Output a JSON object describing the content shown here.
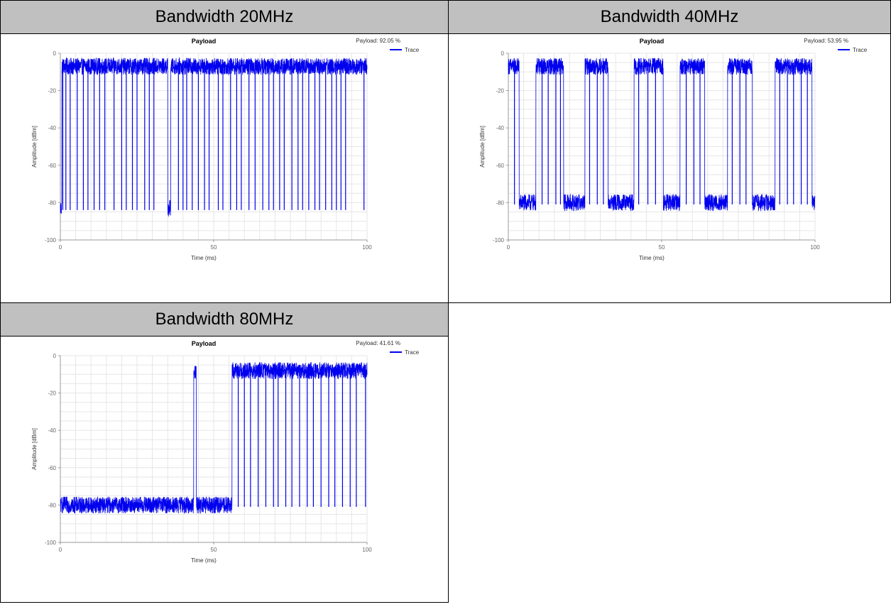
{
  "panels": [
    {
      "title": "Bandwidth 20MHz"
    },
    {
      "title": "Bandwidth 40MHz"
    },
    {
      "title": "Bandwidth 80MHz"
    }
  ],
  "colors": {
    "trace": "#0000ee",
    "header_bg": "#c0c0c0",
    "grid": "#e6e6e6"
  },
  "chart_data": [
    {
      "type": "line",
      "title": "Payload",
      "annotation": "Payload: 92.05 %",
      "xlabel": "Time (ms)",
      "ylabel": "Amplitude [dBm]",
      "xlim": [
        0,
        100
      ],
      "ylim": [
        -100,
        0
      ],
      "xticks": [
        "0",
        "50",
        "100"
      ],
      "yticks": [
        "0",
        "-20",
        "-40",
        "-60",
        "-80",
        "-100"
      ],
      "legend_position": "top-right",
      "grid": true,
      "series": [
        {
          "name": "Trace",
          "on_level": -7,
          "off_level": -83,
          "on_segments": [
            [
              0.5,
              31
            ],
            [
              31,
              35
            ],
            [
              36,
              100
            ]
          ],
          "dropouts": [
            0.8,
            1.8,
            3.2,
            5.5,
            7.5,
            9,
            11,
            12.8,
            14.5,
            17.5,
            20,
            21.5,
            23.5,
            25,
            27.5,
            29,
            30.5,
            38.5,
            40,
            41.2,
            43,
            45,
            47,
            48.5,
            51.5,
            53,
            55.5,
            57.5,
            59,
            61.5,
            63.5,
            66,
            68,
            69.5,
            71.5,
            73,
            75.5,
            77.5,
            79,
            81,
            83,
            84.5,
            86.5,
            88.5,
            90,
            91.5,
            93,
            99
          ]
        }
      ]
    },
    {
      "type": "line",
      "title": "Payload",
      "annotation": "Payload: 53.95 %",
      "xlabel": "Time (ms)",
      "ylabel": "Amplitude [dBm]",
      "xlim": [
        0,
        100
      ],
      "ylim": [
        -100,
        0
      ],
      "xticks": [
        "0",
        "50",
        "100"
      ],
      "yticks": [
        "0",
        "-20",
        "-40",
        "-60",
        "-80",
        "-100"
      ],
      "legend_position": "top-right",
      "grid": true,
      "series": [
        {
          "name": "Trace",
          "on_level": -7,
          "off_level": -80,
          "on_segments": [
            [
              0,
              3.5
            ],
            [
              9,
              18
            ],
            [
              25,
              32.5
            ],
            [
              41,
              50.5
            ],
            [
              56,
              64
            ],
            [
              71.5,
              79.5
            ],
            [
              87,
              99
            ]
          ],
          "dropouts": [
            2,
            11,
            13,
            15.5,
            17,
            26.5,
            29,
            31,
            42.5,
            45.5,
            48,
            58,
            60.5,
            62.5,
            73,
            75.5,
            77.5,
            88.5,
            91,
            93,
            95.5,
            97.5
          ]
        }
      ]
    },
    {
      "type": "line",
      "title": "Payload",
      "annotation": "Payload: 41.61 %",
      "xlabel": "Time (ms)",
      "ylabel": "Amplitude [dBm]",
      "xlim": [
        0,
        100
      ],
      "ylim": [
        -100,
        0
      ],
      "xticks": [
        "0",
        "50",
        "100"
      ],
      "yticks": [
        "0",
        "-20",
        "-40",
        "-60",
        "-80",
        "-100"
      ],
      "legend_position": "top-right",
      "grid": true,
      "series": [
        {
          "name": "Trace",
          "on_level": -8,
          "off_level": -80,
          "on_segments": [
            [
              43.5,
              44.3
            ],
            [
              56,
              100
            ]
          ],
          "dropouts": [
            58,
            60,
            62,
            64.5,
            67,
            69.5,
            71,
            73.5,
            75.5,
            78,
            80.5,
            82.5,
            85,
            87.5,
            89.5,
            92,
            94.5,
            96.5,
            99.5
          ]
        }
      ]
    }
  ]
}
